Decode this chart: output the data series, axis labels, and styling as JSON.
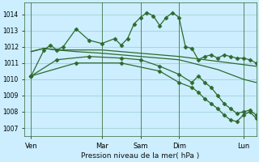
{
  "bg_color": "#cceeff",
  "grid_color": "#99cccc",
  "line_color": "#2d6a2d",
  "xlabel": "Pression niveau de la mer( hPa )",
  "ylim": [
    1006.5,
    1014.7
  ],
  "yticks": [
    1007,
    1008,
    1009,
    1010,
    1011,
    1012,
    1013,
    1014
  ],
  "xlim": [
    0,
    72
  ],
  "xtick_positions": [
    2,
    24,
    36,
    48,
    68
  ],
  "xtick_labels": [
    "Ven",
    "Mar",
    "Sam",
    "Dim",
    "Lun"
  ],
  "vlines": [
    2,
    24,
    36,
    48,
    68
  ],
  "s1_x": [
    2,
    6,
    8,
    10,
    12,
    16,
    20,
    24,
    28,
    30,
    32,
    34,
    36,
    38,
    40,
    42,
    44,
    46,
    48,
    50,
    52,
    54,
    56,
    58,
    60,
    62,
    64,
    66,
    68,
    70,
    72
  ],
  "s1_y": [
    1010.2,
    1011.8,
    1012.1,
    1011.8,
    1012.0,
    1013.1,
    1012.4,
    1012.2,
    1012.5,
    1012.1,
    1012.5,
    1013.4,
    1013.8,
    1014.1,
    1013.9,
    1013.3,
    1013.8,
    1014.1,
    1013.8,
    1012.0,
    1011.9,
    1011.2,
    1011.4,
    1011.5,
    1011.3,
    1011.5,
    1011.4,
    1011.3,
    1011.3,
    1011.2,
    1011.0
  ],
  "s2_x": [
    2,
    6,
    10,
    16,
    24,
    30,
    36,
    42,
    48,
    52,
    56,
    60,
    64,
    68,
    72
  ],
  "s2_y": [
    1011.7,
    1011.9,
    1011.8,
    1011.8,
    1011.8,
    1011.7,
    1011.6,
    1011.5,
    1011.4,
    1011.3,
    1011.2,
    1011.1,
    1011.0,
    1010.9,
    1010.8
  ],
  "s3_x": [
    2,
    6,
    10,
    16,
    24,
    30,
    36,
    42,
    48,
    52,
    56,
    60,
    64,
    68,
    72
  ],
  "s3_y": [
    1011.7,
    1011.9,
    1011.8,
    1011.7,
    1011.6,
    1011.5,
    1011.4,
    1011.3,
    1011.2,
    1011.0,
    1010.8,
    1010.6,
    1010.3,
    1010.0,
    1009.8
  ],
  "s4_x": [
    2,
    10,
    20,
    30,
    36,
    42,
    48,
    52,
    54,
    56,
    58,
    60,
    62,
    64,
    66,
    68,
    70,
    72
  ],
  "s4_y": [
    1010.2,
    1011.2,
    1011.4,
    1011.3,
    1011.2,
    1010.8,
    1010.3,
    1009.8,
    1010.2,
    1009.8,
    1009.5,
    1009.0,
    1008.5,
    1008.2,
    1007.9,
    1008.0,
    1008.1,
    1007.8
  ],
  "s5_x": [
    2,
    16,
    30,
    42,
    48,
    52,
    54,
    56,
    58,
    60,
    62,
    64,
    66,
    68,
    70,
    72
  ],
  "s5_y": [
    1010.2,
    1011.0,
    1011.0,
    1010.5,
    1009.8,
    1009.5,
    1009.2,
    1008.8,
    1008.5,
    1008.2,
    1007.8,
    1007.5,
    1007.4,
    1007.8,
    1008.0,
    1007.6
  ]
}
